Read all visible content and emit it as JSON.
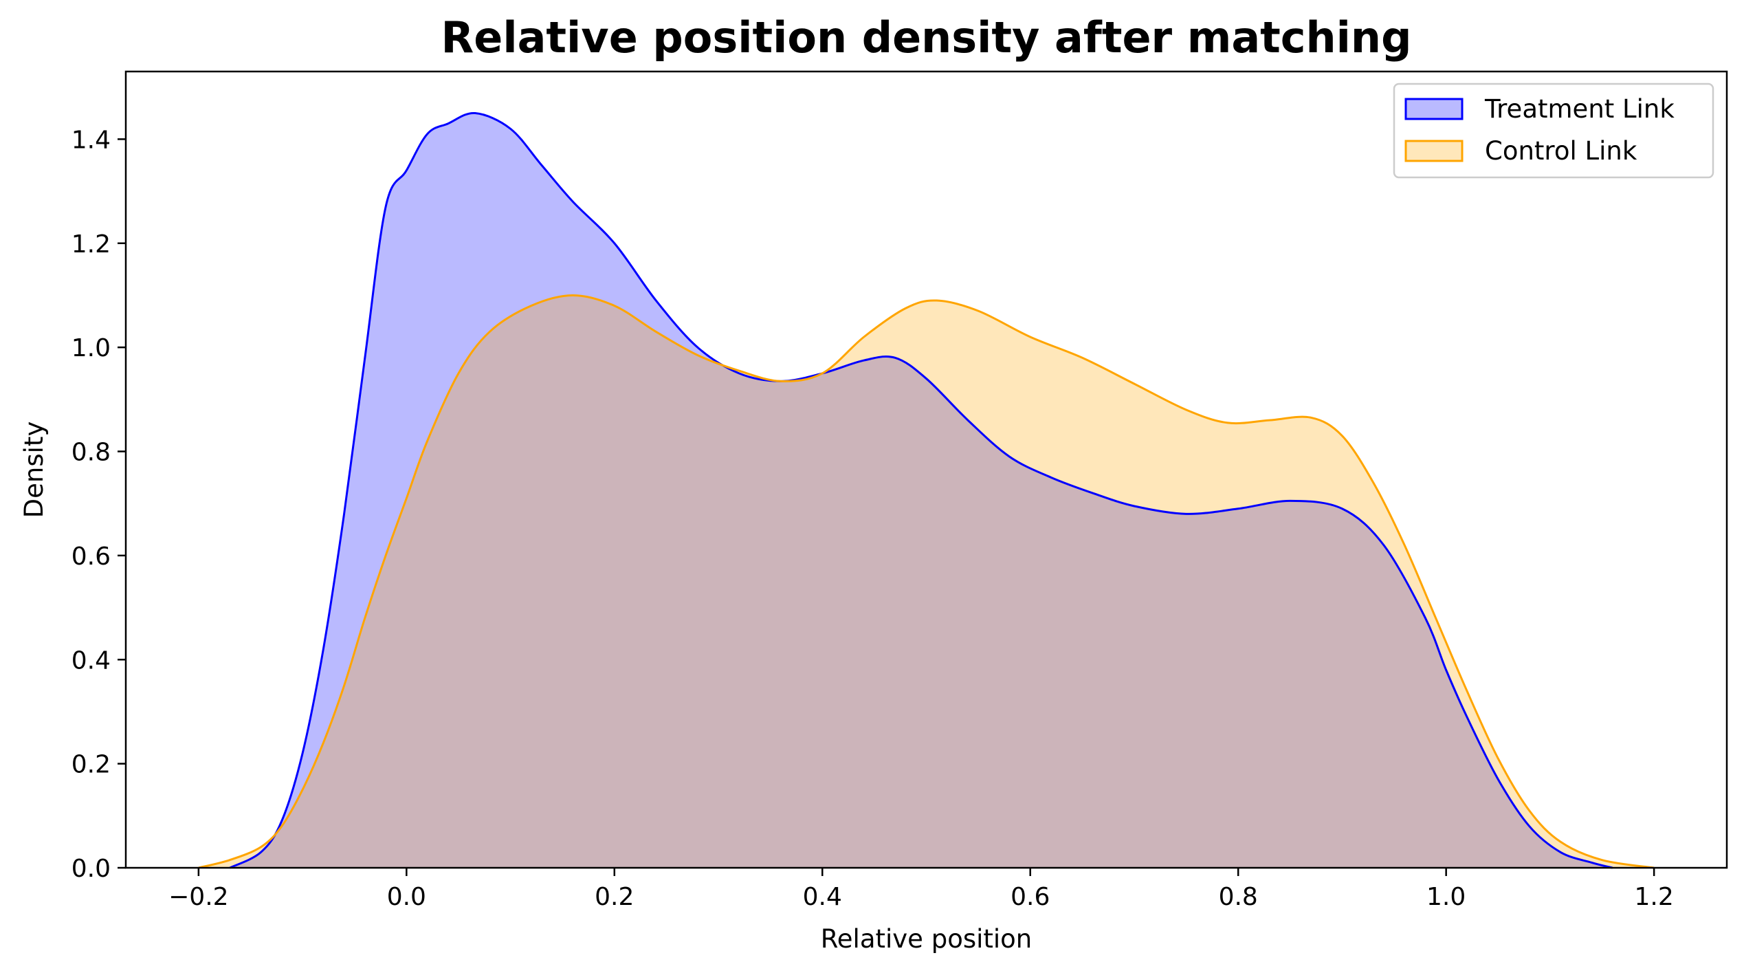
{
  "chart_data": {
    "type": "area",
    "title": "Relative position density after matching",
    "xlabel": "Relative position",
    "ylabel": "Density",
    "xlim": [
      -0.27,
      1.27
    ],
    "ylim": [
      0,
      1.53
    ],
    "xticks": [
      -0.2,
      0.0,
      0.2,
      0.4,
      0.6,
      0.8,
      1.0,
      1.2
    ],
    "xtick_labels": [
      "−0.2",
      "0.0",
      "0.2",
      "0.4",
      "0.6",
      "0.8",
      "1.0",
      "1.2"
    ],
    "yticks": [
      0.0,
      0.2,
      0.4,
      0.6,
      0.8,
      1.0,
      1.2,
      1.4
    ],
    "ytick_labels": [
      "0.0",
      "0.2",
      "0.4",
      "0.6",
      "0.8",
      "1.0",
      "1.2",
      "1.4"
    ],
    "grid": false,
    "legend_position": "top-right",
    "series": [
      {
        "name": "Treatment Link",
        "line_color": "#0000ff",
        "fill_color": "#0000ff",
        "fill_opacity": 0.27,
        "x": [
          -0.17,
          -0.14,
          -0.12,
          -0.1,
          -0.08,
          -0.06,
          -0.04,
          -0.02,
          0.0,
          0.02,
          0.04,
          0.066,
          0.1,
          0.13,
          0.16,
          0.2,
          0.24,
          0.28,
          0.32,
          0.36,
          0.4,
          0.44,
          0.47,
          0.5,
          0.54,
          0.58,
          0.62,
          0.66,
          0.7,
          0.75,
          0.8,
          0.85,
          0.9,
          0.94,
          0.98,
          1.0,
          1.02,
          1.05,
          1.08,
          1.11,
          1.14,
          1.16
        ],
        "y": [
          0.0,
          0.03,
          0.09,
          0.22,
          0.42,
          0.68,
          0.98,
          1.27,
          1.34,
          1.41,
          1.43,
          1.45,
          1.42,
          1.35,
          1.28,
          1.2,
          1.09,
          1.0,
          0.95,
          0.935,
          0.95,
          0.975,
          0.98,
          0.94,
          0.86,
          0.79,
          0.75,
          0.72,
          0.695,
          0.68,
          0.69,
          0.705,
          0.69,
          0.62,
          0.48,
          0.38,
          0.29,
          0.17,
          0.08,
          0.03,
          0.01,
          0.0
        ]
      },
      {
        "name": "Control Link",
        "line_color": "#ffa500",
        "fill_color": "#ffa500",
        "fill_opacity": 0.27,
        "x": [
          -0.2,
          -0.17,
          -0.14,
          -0.12,
          -0.1,
          -0.08,
          -0.06,
          -0.04,
          -0.02,
          0.0,
          0.02,
          0.05,
          0.08,
          0.12,
          0.16,
          0.2,
          0.24,
          0.28,
          0.32,
          0.36,
          0.4,
          0.44,
          0.48,
          0.51,
          0.55,
          0.6,
          0.65,
          0.7,
          0.75,
          0.79,
          0.83,
          0.87,
          0.9,
          0.93,
          0.96,
          0.99,
          1.02,
          1.05,
          1.08,
          1.11,
          1.15,
          1.2
        ],
        "y": [
          0.0,
          0.015,
          0.04,
          0.08,
          0.15,
          0.24,
          0.35,
          0.48,
          0.6,
          0.71,
          0.82,
          0.95,
          1.03,
          1.08,
          1.1,
          1.08,
          1.03,
          0.985,
          0.955,
          0.935,
          0.95,
          1.02,
          1.075,
          1.09,
          1.07,
          1.02,
          0.98,
          0.93,
          0.88,
          0.855,
          0.86,
          0.865,
          0.83,
          0.74,
          0.62,
          0.48,
          0.34,
          0.21,
          0.11,
          0.05,
          0.015,
          0.0
        ]
      }
    ]
  }
}
